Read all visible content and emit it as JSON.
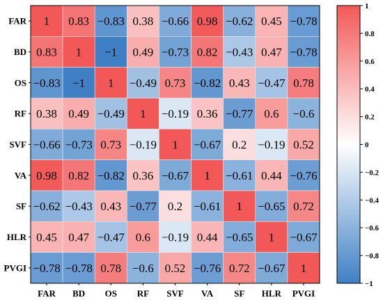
{
  "chart_data": {
    "type": "heatmap",
    "variables": [
      "FAR",
      "BD",
      "OS",
      "RF",
      "SVF",
      "VA",
      "SF",
      "HLR",
      "PVGI"
    ],
    "values": [
      [
        1,
        0.83,
        -0.83,
        0.38,
        -0.66,
        0.98,
        -0.62,
        0.45,
        -0.78
      ],
      [
        0.83,
        1,
        -1,
        0.49,
        -0.73,
        0.82,
        -0.43,
        0.47,
        -0.78
      ],
      [
        -0.83,
        -1,
        1,
        -0.49,
        0.73,
        -0.82,
        0.43,
        -0.47,
        0.78
      ],
      [
        0.38,
        0.49,
        -0.49,
        1,
        -0.19,
        0.36,
        -0.77,
        0.6,
        -0.6
      ],
      [
        -0.66,
        -0.73,
        0.73,
        -0.19,
        1,
        -0.67,
        0.2,
        -0.19,
        0.52
      ],
      [
        0.98,
        0.82,
        -0.82,
        0.36,
        -0.67,
        1,
        -0.61,
        0.44,
        -0.76
      ],
      [
        -0.62,
        -0.43,
        0.43,
        -0.77,
        0.2,
        -0.61,
        1,
        -0.65,
        0.72
      ],
      [
        0.45,
        0.47,
        -0.47,
        0.6,
        -0.19,
        0.44,
        -0.65,
        1,
        -0.67
      ],
      [
        -0.78,
        -0.78,
        0.78,
        -0.6,
        0.52,
        -0.76,
        0.72,
        -0.67,
        1
      ]
    ],
    "colorbar": {
      "range": [
        -1,
        1
      ],
      "ticks": [
        1,
        0.8,
        0.6,
        0.4,
        0.2,
        0,
        -0.2,
        -0.4,
        -0.6,
        -0.8,
        -1
      ],
      "tick_labels": [
        "1",
        "0.8",
        "0.6",
        "0.4",
        "0.2",
        "0",
        "−0.2",
        "−0.4",
        "−0.6",
        "−0.8",
        "−1"
      ],
      "colors": {
        "negative": "#3f80c5",
        "neutral": "#ffffff",
        "positive": "#f35858"
      }
    },
    "grid": true
  }
}
